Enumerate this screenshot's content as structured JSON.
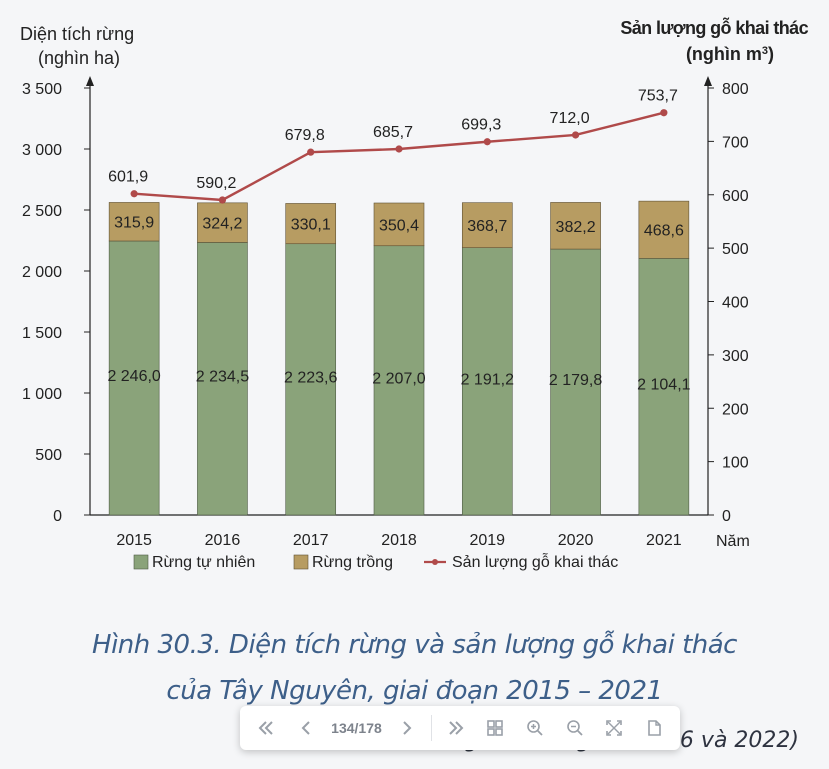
{
  "chart_data": {
    "type": "bar+line",
    "categories": [
      "2015",
      "2016",
      "2017",
      "2018",
      "2019",
      "2020",
      "2021"
    ],
    "series": [
      {
        "name": "Rừng tự nhiên",
        "kind": "stacked-bar",
        "axis": "left",
        "color": "#8aa37a",
        "values": [
          2246.0,
          2234.5,
          2223.6,
          2207.0,
          2191.2,
          2179.8,
          2104.1
        ],
        "labels": [
          "2 246,0",
          "2 234,5",
          "2 223,6",
          "2 207,0",
          "2 191,2",
          "2 179,8",
          "2 104,1"
        ]
      },
      {
        "name": "Rừng trồng",
        "kind": "stacked-bar",
        "axis": "left",
        "color": "#b79c62",
        "values": [
          315.9,
          324.2,
          330.1,
          350.4,
          368.7,
          382.2,
          468.6
        ],
        "labels": [
          "315,9",
          "324,2",
          "330,1",
          "350,4",
          "368,7",
          "382,2",
          "468,6"
        ]
      },
      {
        "name": "Sản lượng gỗ khai thác",
        "kind": "line",
        "axis": "right",
        "color": "#b04a4a",
        "values": [
          601.9,
          590.2,
          679.8,
          685.7,
          699.3,
          712.0,
          753.7
        ],
        "labels": [
          "601,9",
          "590,2",
          "679,8",
          "685,7",
          "699,3",
          "712,0",
          "753,7"
        ]
      }
    ],
    "left_axis": {
      "title_line1": "Diện tích rừng",
      "title_line2": "(nghìn ha)",
      "range": [
        0,
        3500
      ],
      "ticks": [
        0,
        500,
        1000,
        1500,
        2000,
        2500,
        3000,
        3500
      ],
      "tick_labels": [
        "0",
        "500",
        "1 000",
        "1 500",
        "2 000",
        "2 500",
        "3 000",
        "3 500"
      ]
    },
    "right_axis": {
      "title_line1": "Sản lượng gỗ khai thác",
      "title_line2_prefix": "(nghìn m",
      "title_line2_sup": "3",
      "title_line2_suffix": ")",
      "range": [
        0,
        800
      ],
      "ticks": [
        0,
        100,
        200,
        300,
        400,
        500,
        600,
        700,
        800
      ],
      "tick_labels": [
        "0",
        "100",
        "200",
        "300",
        "400",
        "500",
        "600",
        "700",
        "800"
      ]
    },
    "xlabel": "Năm",
    "legend": "bottom-center",
    "grid": false
  },
  "caption_line1": "Hình 30.3. Diện tích rừng và sản lượng gỗ khai thác",
  "caption_line2": "của Tây Nguyên, giai đoạn 2015 – 2021",
  "source_text": "(Niên giám thống kê, 2016 và 2022)",
  "toolbar": {
    "page_indicator": "134/178",
    "icons": [
      "first-page-icon",
      "prev-page-icon",
      "next-page-icon",
      "last-page-icon",
      "grid-view-icon",
      "zoom-in-icon",
      "zoom-out-icon",
      "fit-screen-icon",
      "document-icon"
    ]
  }
}
